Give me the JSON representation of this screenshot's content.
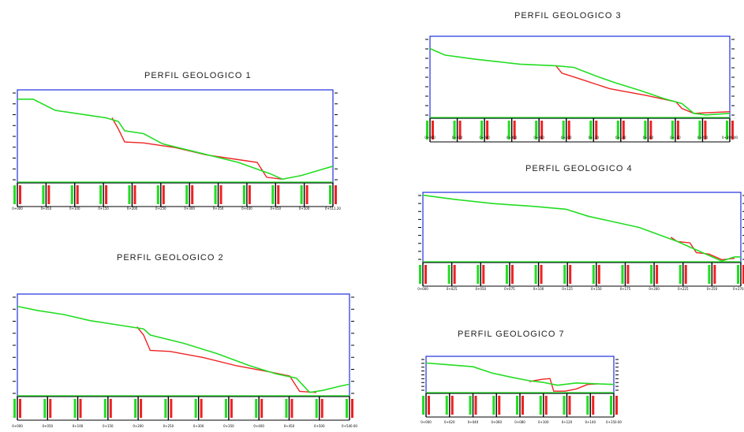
{
  "colors": {
    "frame": "#1f2fe0",
    "terrain": "#22dd22",
    "design": "#ee2222",
    "ticks": "#000000"
  },
  "profiles": [
    {
      "id": "p1",
      "title": "PERFIL GEOLOGICO 1",
      "station_labels": [
        "0+000",
        "0+050",
        "0+100",
        "0+150",
        "0+200",
        "0+250",
        "0+300",
        "0+350",
        "0+400",
        "0+450",
        "0+500",
        "0+511.20"
      ],
      "terrain": [
        [
          0,
          0.9
        ],
        [
          0.05,
          0.9
        ],
        [
          0.12,
          0.78
        ],
        [
          0.2,
          0.74
        ],
        [
          0.28,
          0.7
        ],
        [
          0.32,
          0.66
        ],
        [
          0.34,
          0.56
        ],
        [
          0.4,
          0.53
        ],
        [
          0.46,
          0.42
        ],
        [
          0.58,
          0.32
        ],
        [
          0.7,
          0.22
        ],
        [
          0.8,
          0.1
        ],
        [
          0.84,
          0.04
        ],
        [
          0.9,
          0.08
        ],
        [
          0.96,
          0.14
        ],
        [
          1,
          0.18
        ]
      ],
      "design": [
        [
          0.3,
          0.7
        ],
        [
          0.32,
          0.58
        ],
        [
          0.34,
          0.44
        ],
        [
          0.4,
          0.43
        ],
        [
          0.5,
          0.38
        ],
        [
          0.6,
          0.3
        ],
        [
          0.7,
          0.25
        ],
        [
          0.76,
          0.22
        ],
        [
          0.79,
          0.06
        ],
        [
          0.84,
          0.04
        ]
      ]
    },
    {
      "id": "p2",
      "title": "PERFIL GEOLOGICO  2",
      "station_labels": [
        "0+000",
        "0+050",
        "0+100",
        "0+150",
        "0+200",
        "0+250",
        "0+300",
        "0+350",
        "0+400",
        "0+450",
        "0+500",
        "0+540.00"
      ],
      "terrain": [
        [
          0,
          0.88
        ],
        [
          0.06,
          0.84
        ],
        [
          0.14,
          0.8
        ],
        [
          0.22,
          0.74
        ],
        [
          0.3,
          0.7
        ],
        [
          0.38,
          0.66
        ],
        [
          0.4,
          0.6
        ],
        [
          0.5,
          0.52
        ],
        [
          0.6,
          0.42
        ],
        [
          0.7,
          0.3
        ],
        [
          0.78,
          0.22
        ],
        [
          0.84,
          0.18
        ],
        [
          0.88,
          0.04
        ],
        [
          0.92,
          0.06
        ],
        [
          0.97,
          0.1
        ],
        [
          1,
          0.12
        ]
      ],
      "design": [
        [
          0.36,
          0.68
        ],
        [
          0.38,
          0.6
        ],
        [
          0.4,
          0.45
        ],
        [
          0.46,
          0.44
        ],
        [
          0.56,
          0.38
        ],
        [
          0.66,
          0.3
        ],
        [
          0.76,
          0.24
        ],
        [
          0.82,
          0.2
        ],
        [
          0.85,
          0.05
        ],
        [
          0.9,
          0.04
        ]
      ]
    },
    {
      "id": "p3",
      "title": "PERFIL GEOLOGICO 3",
      "station_labels": [
        "0+000",
        "0+020",
        "0+040",
        "0+060",
        "0+080",
        "0+100",
        "0+120",
        "0+140",
        "0+160",
        "0+180",
        "0+200",
        "0+209.00"
      ],
      "terrain": [
        [
          0,
          0.85
        ],
        [
          0.05,
          0.77
        ],
        [
          0.15,
          0.72
        ],
        [
          0.3,
          0.66
        ],
        [
          0.42,
          0.64
        ],
        [
          0.48,
          0.62
        ],
        [
          0.55,
          0.52
        ],
        [
          0.62,
          0.43
        ],
        [
          0.7,
          0.34
        ],
        [
          0.78,
          0.24
        ],
        [
          0.84,
          0.18
        ],
        [
          0.88,
          0.06
        ],
        [
          0.92,
          0.04
        ],
        [
          1,
          0.06
        ]
      ],
      "design": [
        [
          0.42,
          0.64
        ],
        [
          0.44,
          0.55
        ],
        [
          0.5,
          0.48
        ],
        [
          0.6,
          0.36
        ],
        [
          0.72,
          0.28
        ],
        [
          0.82,
          0.2
        ],
        [
          0.84,
          0.12
        ],
        [
          0.88,
          0.06
        ],
        [
          1,
          0.08
        ]
      ]
    },
    {
      "id": "p4",
      "title": "PERFIL GEOLOGICO  4",
      "station_labels": [
        "0+000",
        "0+025",
        "0+050",
        "0+075",
        "0+100",
        "0+125",
        "0+150",
        "0+175",
        "0+200",
        "0+225",
        "0+250",
        "0+270.00"
      ],
      "terrain": [
        [
          0,
          0.96
        ],
        [
          0.1,
          0.9
        ],
        [
          0.22,
          0.84
        ],
        [
          0.35,
          0.8
        ],
        [
          0.45,
          0.76
        ],
        [
          0.52,
          0.66
        ],
        [
          0.6,
          0.58
        ],
        [
          0.68,
          0.5
        ],
        [
          0.74,
          0.4
        ],
        [
          0.8,
          0.3
        ],
        [
          0.86,
          0.18
        ],
        [
          0.9,
          0.1
        ],
        [
          0.94,
          0.02
        ],
        [
          0.98,
          0.08
        ],
        [
          1,
          0.08
        ]
      ],
      "design": [
        [
          0.78,
          0.36
        ],
        [
          0.8,
          0.3
        ],
        [
          0.84,
          0.28
        ],
        [
          0.86,
          0.14
        ],
        [
          0.9,
          0.12
        ],
        [
          0.94,
          0.04
        ],
        [
          0.98,
          0.06
        ]
      ]
    },
    {
      "id": "p7",
      "title": "PERFIL GEOLOGICO   7",
      "station_labels": [
        "0+000",
        "0+020",
        "0+040",
        "0+060",
        "0+080",
        "0+100",
        "0+120",
        "0+140",
        "0+150.00"
      ],
      "terrain": [
        [
          0,
          0.82
        ],
        [
          0.1,
          0.78
        ],
        [
          0.25,
          0.72
        ],
        [
          0.35,
          0.55
        ],
        [
          0.45,
          0.44
        ],
        [
          0.55,
          0.34
        ],
        [
          0.62,
          0.3
        ],
        [
          0.7,
          0.22
        ],
        [
          0.8,
          0.28
        ],
        [
          0.9,
          0.26
        ],
        [
          1,
          0.24
        ]
      ],
      "design": [
        [
          0.55,
          0.32
        ],
        [
          0.62,
          0.38
        ],
        [
          0.66,
          0.4
        ],
        [
          0.68,
          0.06
        ],
        [
          0.74,
          0.06
        ],
        [
          0.8,
          0.12
        ],
        [
          0.86,
          0.24
        ],
        [
          0.92,
          0.26
        ]
      ]
    }
  ]
}
